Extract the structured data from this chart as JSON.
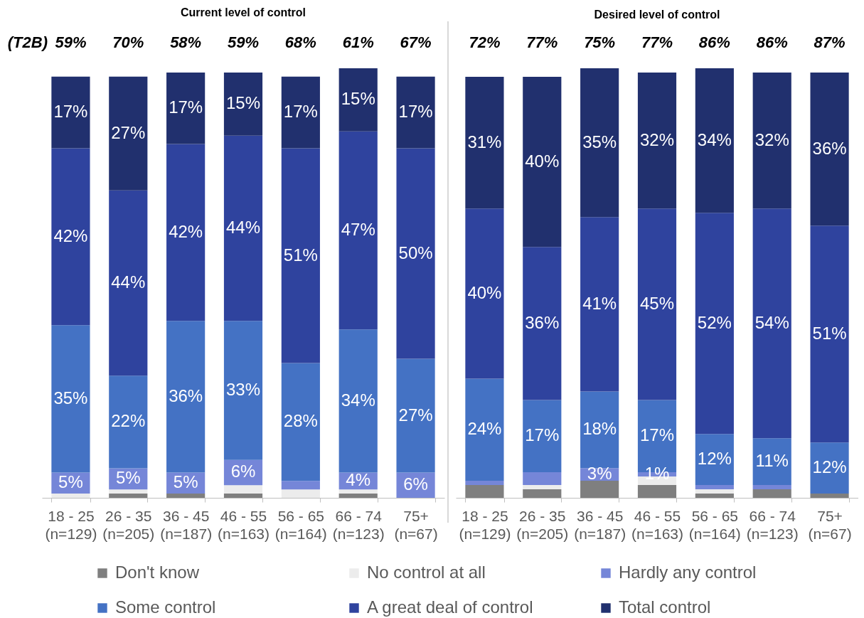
{
  "chart_data": [
    {
      "type": "bar",
      "stacked": true,
      "title": "Current level of control",
      "categories": [
        "18 - 25\n(n=129)",
        "26 - 35\n(n=205)",
        "36 - 45\n(n=187)",
        "46 - 55\n(n=163)",
        "56 - 65\n(n=164)",
        "66 - 74\n(n=123)",
        "75+\n(n=67)"
      ],
      "series": [
        {
          "name": "Don't know",
          "color": "#7f7f7f",
          "values": [
            0,
            1,
            1,
            1,
            0,
            1,
            0
          ],
          "value_labels": [
            null,
            null,
            null,
            null,
            null,
            null,
            null
          ]
        },
        {
          "name": "No control at all",
          "color": "#ececec",
          "values": [
            1,
            1,
            0,
            2,
            2,
            1,
            0
          ],
          "value_labels": [
            null,
            null,
            null,
            null,
            null,
            null,
            null
          ]
        },
        {
          "name": "Hardly any control",
          "color": "#7586d8",
          "values": [
            5,
            5,
            5,
            6,
            2,
            4,
            6
          ],
          "value_labels": [
            "5%",
            "5%",
            "5%",
            "6%",
            null,
            "4%",
            "6%"
          ]
        },
        {
          "name": "Some control",
          "color": "#4472c4",
          "values": [
            35,
            22,
            36,
            33,
            28,
            34,
            27
          ],
          "value_labels": [
            "35%",
            "22%",
            "36%",
            "33%",
            "28%",
            "34%",
            "27%"
          ]
        },
        {
          "name": "A great deal of control",
          "color": "#2f439e",
          "values": [
            42,
            44,
            42,
            44,
            51,
            47,
            50
          ],
          "value_labels": [
            "42%",
            "44%",
            "42%",
            "44%",
            "51%",
            "47%",
            "50%"
          ]
        },
        {
          "name": "Total control",
          "color": "#21306e",
          "values": [
            17,
            27,
            17,
            15,
            17,
            15,
            17
          ],
          "value_labels": [
            "17%",
            "27%",
            "17%",
            "15%",
            "17%",
            "15%",
            "17%"
          ]
        }
      ],
      "tick_labels": "x",
      "legend": "bottom",
      "annotations": [
        "(T2B)",
        "59%",
        "70%",
        "58%",
        "59%",
        "68%",
        "61%",
        "67%"
      ]
    },
    {
      "type": "bar",
      "stacked": true,
      "title": "Desired level of control",
      "categories": [
        "18 - 25\n(n=129)",
        "26 - 35\n(n=205)",
        "36 - 45\n(n=187)",
        "46 - 55\n(n=163)",
        "56 - 65\n(n=164)",
        "66 - 74\n(n=123)",
        "75+\n(n=67)"
      ],
      "series": [
        {
          "name": "Don't know",
          "color": "#7f7f7f",
          "values": [
            3,
            2,
            4,
            3,
            1,
            2,
            1
          ],
          "value_labels": [
            null,
            null,
            null,
            null,
            null,
            null,
            null
          ]
        },
        {
          "name": "No control at all",
          "color": "#ececec",
          "values": [
            0,
            1,
            0,
            2,
            1,
            0,
            0
          ],
          "value_labels": [
            null,
            null,
            null,
            null,
            null,
            null,
            null
          ]
        },
        {
          "name": "Hardly any control",
          "color": "#7586d8",
          "values": [
            1,
            3,
            3,
            1,
            1,
            1,
            0
          ],
          "value_labels": [
            null,
            null,
            "3%",
            "1%",
            null,
            null,
            null
          ]
        },
        {
          "name": "Some control",
          "color": "#4472c4",
          "values": [
            24,
            17,
            18,
            17,
            12,
            11,
            12
          ],
          "value_labels": [
            "24%",
            "17%",
            "18%",
            "17%",
            "12%",
            "11%",
            "12%"
          ]
        },
        {
          "name": "A great deal of control",
          "color": "#2f439e",
          "values": [
            40,
            36,
            41,
            45,
            52,
            54,
            51
          ],
          "value_labels": [
            "40%",
            "36%",
            "41%",
            "45%",
            "52%",
            "54%",
            "51%"
          ]
        },
        {
          "name": "Total control",
          "color": "#21306e",
          "values": [
            31,
            40,
            35,
            32,
            34,
            32,
            36
          ],
          "value_labels": [
            "31%",
            "40%",
            "35%",
            "32%",
            "34%",
            "32%",
            "36%"
          ]
        }
      ],
      "tick_labels": "x",
      "legend": "bottom",
      "annotations": [
        "72%",
        "77%",
        "75%",
        "77%",
        "86%",
        "86%",
        "87%"
      ]
    }
  ]
}
